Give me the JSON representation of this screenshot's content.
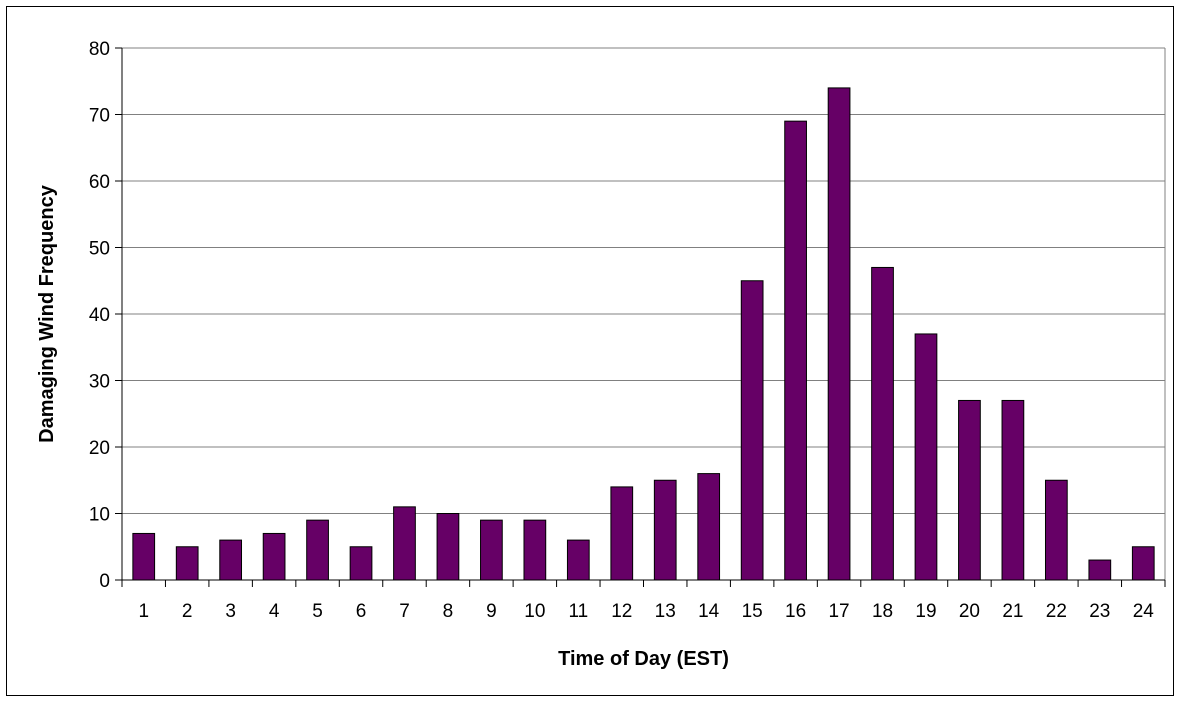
{
  "chart_data": {
    "type": "bar",
    "title": "",
    "xlabel": "Time of Day (EST)",
    "ylabel": "Damaging Wind Frequency",
    "categories": [
      "1",
      "2",
      "3",
      "4",
      "5",
      "6",
      "7",
      "8",
      "9",
      "10",
      "11",
      "12",
      "13",
      "14",
      "15",
      "16",
      "17",
      "18",
      "19",
      "20",
      "21",
      "22",
      "23",
      "24"
    ],
    "values": [
      7,
      5,
      6,
      7,
      9,
      5,
      11,
      10,
      9,
      9,
      6,
      14,
      15,
      16,
      45,
      69,
      74,
      47,
      37,
      27,
      27,
      15,
      3,
      5
    ],
    "ylim": [
      0,
      80
    ],
    "yticks": [
      0,
      10,
      20,
      30,
      40,
      50,
      60,
      70,
      80
    ],
    "grid": true,
    "legend": "none",
    "bar_color": "#660066",
    "bar_edge_color": "#000000",
    "grid_color": "#808080"
  }
}
